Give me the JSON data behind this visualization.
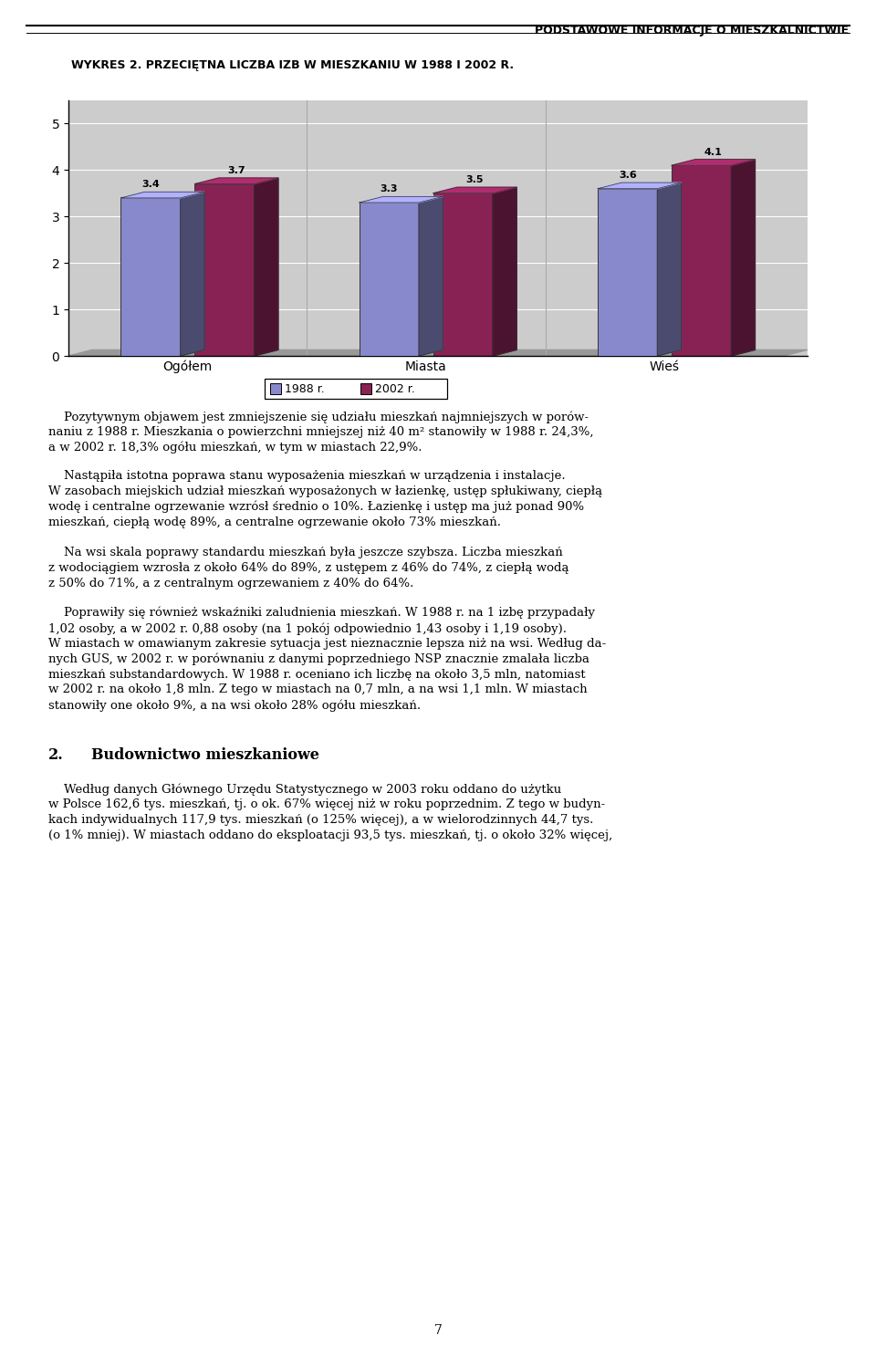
{
  "page_title": "PODSTAWOWE INFORMACJE O MIESZKALNICTWIE",
  "chart_title": "WYKRES 2. PRZECIĘTNA LICZBA IZB W MIESZKANIU W 1988 I 2002 R.",
  "categories": [
    "Ogółem",
    "Miasta",
    "Wieś"
  ],
  "values_1988": [
    3.4,
    3.3,
    3.6
  ],
  "values_2002": [
    3.7,
    3.5,
    4.1
  ],
  "color_1988": "#8888cc",
  "color_2002": "#882255",
  "legend_1988": "1988 r.",
  "legend_2002": "2002 r.",
  "yticks": [
    0,
    1,
    2,
    3,
    4,
    5
  ],
  "bar_chart_bg": "#cccccc",
  "paragraphs": [
    "    Pozytywnym objawem jest zmniejszenie się udziału mieszkań najmniejszych w porów-\nnaniu z 1988 r. Mieszkania o powierzchni mniejszej niż 40 m² stanowiły w 1988 r. 24,3%,\na w 2002 r. 18,3% ogółu mieszkań, w tym w miastach 22,9%.",
    "    Nastąpiła istotna poprawa stanu wyposażenia mieszkań w urządzenia i instalacje.\nW zasobach miejskich udział mieszkań wyposażonych w łazienkę, ustęp spłukiwany, ciepłą\nwodę i centralne ogrzewanie wzrósł średnio o 10%. Łazienkę i ustęp ma już ponad 90%\nmieszkań, ciepłą wodę 89%, a centralne ogrzewanie około 73% mieszkań.",
    "    Na wsi skala poprawy standardu mieszkań była jeszcze szybsza. Liczba mieszkań\nz wodociągiem wzrosła z około 64% do 89%, z ustępem z 46% do 74%, z ciepłą wodą\nz 50% do 71%, a z centralnym ogrzewaniem z 40% do 64%.",
    "    Poprawiły się również wskaźniki zaludnienia mieszkań. W 1988 r. na 1 izbę przypadały\n1,02 osoby, a w 2002 r. 0,88 osoby (na 1 pokój odpowiednio 1,43 osoby i 1,19 osoby).\nW miastach w omawianym zakresie sytuacja jest nieznacznie lepsza niż na wsi. Według da-\nnych GUS, w 2002 r. w porównaniu z danymi poprzedniego NSP znacznie zmalała liczba\nmieszkań substandardowych. W 1988 r. oceniano ich liczbę na około 3,5 mln, natomiast\nw 2002 r. na około 1,8 mln. Z tego w miastach na 0,7 mln, a na wsi 1,1 mln. W miastach\nstanowiły one około 9%, a na wsi około 28% ogółu mieszkań."
  ],
  "section_title_num": "2.",
  "section_title_text": "Budownictwo mieszkaniowe",
  "section_paragraph": "    Według danych Głównego Urzędu Statystycznego w 2003 roku oddano do użytku\nw Polsce 162,6 tys. mieszkań, tj. o ok. 67% więcej niż w roku poprzednim. Z tego w budyn-\nkach indywidualnych 117,9 tys. mieszkań (o 125% więcej), a w wielorodzinnych 44,7 tys.\n(o 1% mniej). W miastach oddano do eksploatacji 93,5 tys. mieszkań, tj. o około 32% więcej,",
  "page_number": "7"
}
